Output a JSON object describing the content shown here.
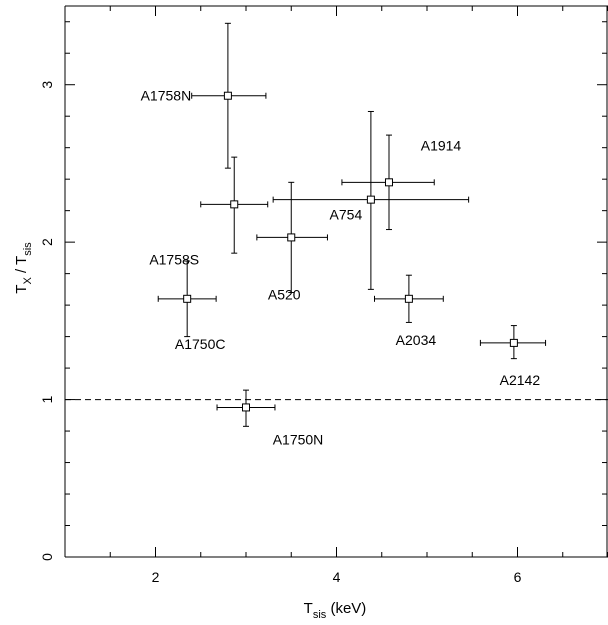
{
  "chart_data": {
    "type": "scatter",
    "title": "",
    "xlabel": {
      "main": "T",
      "sub": "sis",
      "tail": "  (keV)"
    },
    "ylabel": {
      "main": "T",
      "sub": "X",
      "mid": " / T",
      "sub2": "sis"
    },
    "xlim": [
      1.0,
      7.0
    ],
    "ylim": [
      0.0,
      3.5
    ],
    "xticks": [
      2,
      4,
      6
    ],
    "xtick_labels": [
      "2",
      "4",
      "6"
    ],
    "yticks": [
      0,
      1,
      2,
      3
    ],
    "ytick_labels": [
      "0",
      "1",
      "2",
      "3"
    ],
    "reference_line": {
      "y": 1.0,
      "style": "dashed"
    },
    "grid": false,
    "points": [
      {
        "label": "A1758N",
        "x": 2.8,
        "y": 2.93,
        "xerr": [
          0.4,
          0.42
        ],
        "yerr": [
          0.46,
          0.46
        ]
      },
      {
        "label": "A1758S",
        "x": 2.87,
        "y": 2.24,
        "xerr": [
          0.37,
          0.37
        ],
        "yerr": [
          0.31,
          0.3
        ]
      },
      {
        "label": "A1750C",
        "x": 2.35,
        "y": 1.64,
        "xerr": [
          0.32,
          0.32
        ],
        "yerr": [
          0.24,
          0.24
        ]
      },
      {
        "label": "A1750N",
        "x": 3.0,
        "y": 0.95,
        "xerr": [
          0.32,
          0.32
        ],
        "yerr": [
          0.12,
          0.11
        ]
      },
      {
        "label": "A520",
        "x": 3.5,
        "y": 2.03,
        "xerr": [
          0.38,
          0.4
        ],
        "yerr": [
          0.35,
          0.35
        ]
      },
      {
        "label": "A754",
        "x": 4.38,
        "y": 2.27,
        "xerr": [
          1.08,
          1.08
        ],
        "yerr": [
          0.57,
          0.56
        ]
      },
      {
        "label": "A1914",
        "x": 4.58,
        "y": 2.38,
        "xerr": [
          0.52,
          0.5
        ],
        "yerr": [
          0.3,
          0.3
        ]
      },
      {
        "label": "A2034",
        "x": 4.8,
        "y": 1.64,
        "xerr": [
          0.38,
          0.38
        ],
        "yerr": [
          0.15,
          0.15
        ]
      },
      {
        "label": "A2142",
        "x": 5.96,
        "y": 1.36,
        "xerr": [
          0.37,
          0.35
        ],
        "yerr": [
          0.1,
          0.11
        ]
      }
    ]
  }
}
